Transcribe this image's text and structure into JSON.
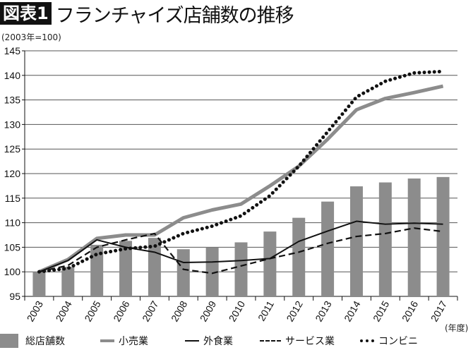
{
  "header": {
    "badge": "図表1",
    "title": "フランチャイズ店舗数の推移"
  },
  "chart_data": {
    "type": "bar+line",
    "title": "フランチャイズ店舗数の推移",
    "ylabel": "(2003年=100)",
    "xlabel": "(年度)",
    "ylim": [
      95,
      145
    ],
    "yticks": [
      95,
      100,
      105,
      110,
      115,
      120,
      125,
      130,
      135,
      140,
      145
    ],
    "grid": true,
    "legend_position": "bottom",
    "categories": [
      "2003",
      "2004",
      "2005",
      "2006",
      "2007",
      "2008",
      "2009",
      "2010",
      "2011",
      "2012",
      "2013",
      "2014",
      "2015",
      "2016",
      "2017"
    ],
    "series": [
      {
        "name": "総店舗数",
        "kind": "bar",
        "color": "#8c8c8c",
        "values": [
          100,
          101,
          105.5,
          106.3,
          106.9,
          104.6,
          105,
          106,
          108.2,
          111,
          114.3,
          117.4,
          118.2,
          119,
          119.3
        ]
      },
      {
        "name": "小売業",
        "kind": "line",
        "style": "solid-thick",
        "color": "#8c8c8c",
        "values": [
          100,
          102.5,
          106.8,
          107.5,
          107.5,
          111,
          112.6,
          113.8,
          117.5,
          121.5,
          127,
          133,
          135.3,
          136.5,
          137.8
        ]
      },
      {
        "name": "外食業",
        "kind": "line",
        "style": "solid",
        "color": "#111111",
        "values": [
          100,
          102.3,
          106.5,
          105,
          104,
          101.9,
          102,
          102.3,
          102.7,
          106.2,
          108.3,
          110.3,
          109.7,
          109.9,
          109.7
        ]
      },
      {
        "name": "サービス業",
        "kind": "line",
        "style": "dashed",
        "color": "#111111",
        "values": [
          100,
          101.3,
          105,
          106.5,
          107.8,
          100.5,
          99.7,
          101.2,
          102.7,
          104,
          105.8,
          107.2,
          107.8,
          108.9,
          108.2
        ]
      },
      {
        "name": "コンビニ",
        "kind": "line",
        "style": "dotted",
        "color": "#111111",
        "values": [
          100,
          100.7,
          103.6,
          104.7,
          105.2,
          107.8,
          109.3,
          111.4,
          115.5,
          121.5,
          128.5,
          135.6,
          138.8,
          140.5,
          140.8
        ]
      }
    ]
  }
}
